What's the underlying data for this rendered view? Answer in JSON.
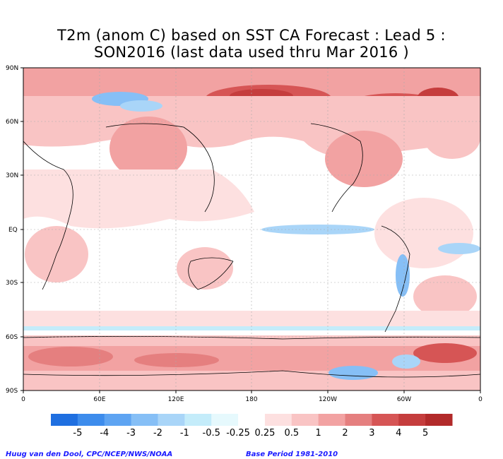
{
  "title": {
    "line1": "T2m (anom C) based on SST CA Forecast : Lead 5 :",
    "line2": "SON2016 (last data used thru Mar 2016 )"
  },
  "lat_labels": [
    "90N",
    "60N",
    "30N",
    "EQ",
    "30S",
    "60S",
    "90S"
  ],
  "lon_labels": [
    "0",
    "60E",
    "120E",
    "180",
    "120W",
    "60W",
    "0"
  ],
  "colorbar": {
    "labels": [
      "-5",
      "-4",
      "-3",
      "-2",
      "-1",
      "-0.5",
      "-0.25",
      "0.25",
      "0.5",
      "1",
      "2",
      "3",
      "4",
      "5"
    ],
    "colors": [
      "#1f6fe0",
      "#3d8cec",
      "#5ea4f2",
      "#86bff6",
      "#a9d5f8",
      "#c4ecfa",
      "#e6f9fd",
      "#ffffff",
      "#fde0e0",
      "#f9c4c4",
      "#f2a2a2",
      "#e57f7f",
      "#d65555",
      "#c53d3d",
      "#b22a2a"
    ]
  },
  "footer": {
    "left": "Huug van den Dool, CPC/NCEP/NWS/NOAA",
    "right": "Base Period 1981-2010"
  }
}
